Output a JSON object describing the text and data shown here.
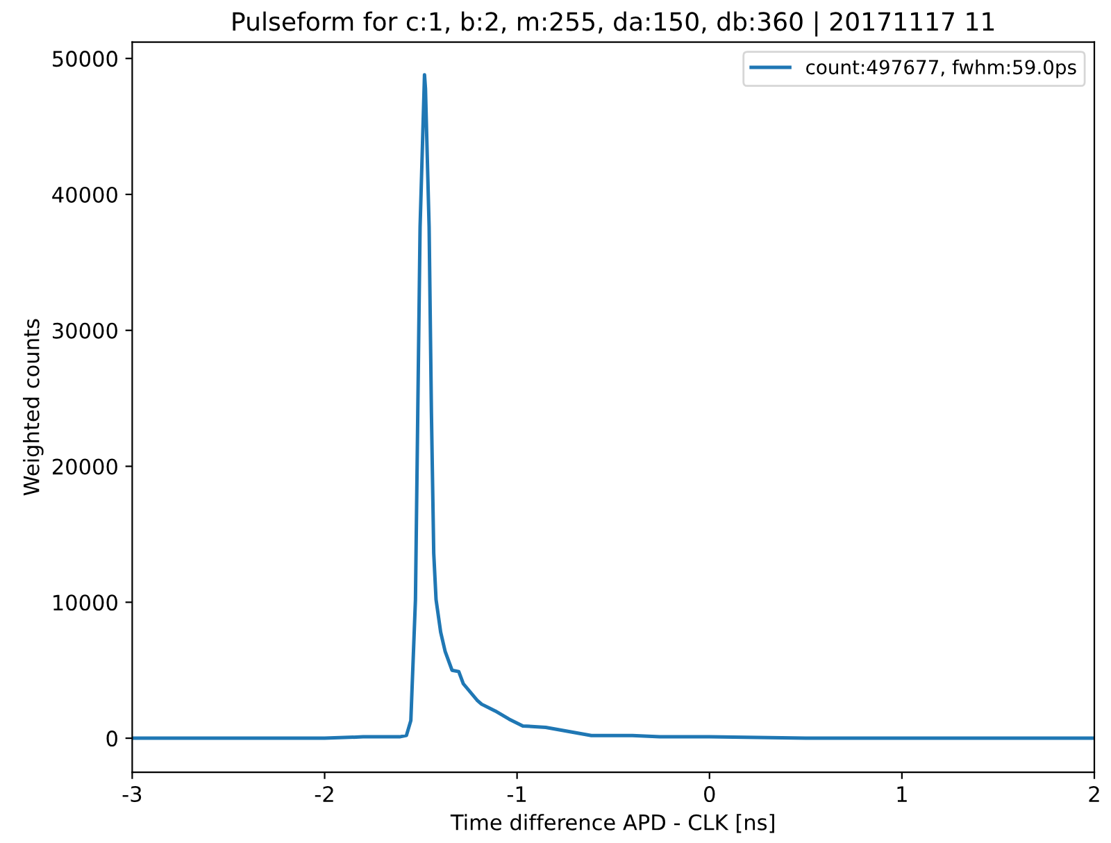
{
  "chart_data": {
    "type": "line",
    "title": "Pulseform for c:1, b:2, m:255, da:150, db:360 | 20171117 11",
    "xlabel": "Time difference APD - CLK [ns]",
    "ylabel": "Weighted counts",
    "series": [
      {
        "name": "count:497677, fwhm:59.0ps",
        "color": "#1f77b4",
        "x": [
          -3,
          -2.5,
          -2,
          -1.8,
          -1.61,
          -1.575,
          -1.552,
          -1.528,
          -1.516,
          -1.504,
          -1.481,
          -1.476,
          -1.457,
          -1.445,
          -1.433,
          -1.421,
          -1.397,
          -1.374,
          -1.338,
          -1.303,
          -1.279,
          -1.208,
          -1.184,
          -1.113,
          -1.041,
          -0.97,
          -0.851,
          -0.614,
          -0.4,
          -0.258,
          0,
          0.5,
          1,
          1.5,
          2
        ],
        "values": [
          0,
          0,
          0,
          100,
          100,
          200,
          1300,
          10200,
          23900,
          37600,
          48800,
          47800,
          37600,
          23900,
          13600,
          10200,
          7800,
          6400,
          5000,
          4900,
          4000,
          2800,
          2500,
          2000,
          1400,
          900,
          800,
          200,
          200,
          100,
          100,
          0,
          0,
          0,
          0
        ]
      }
    ],
    "xlim": [
      -3,
      2
    ],
    "ylim": [
      -2500,
      51200
    ],
    "xticks": [
      -3,
      -2,
      -1,
      0,
      1,
      2
    ],
    "yticks": [
      0,
      10000,
      20000,
      30000,
      40000,
      50000
    ],
    "legend": "top right",
    "grid": false
  }
}
